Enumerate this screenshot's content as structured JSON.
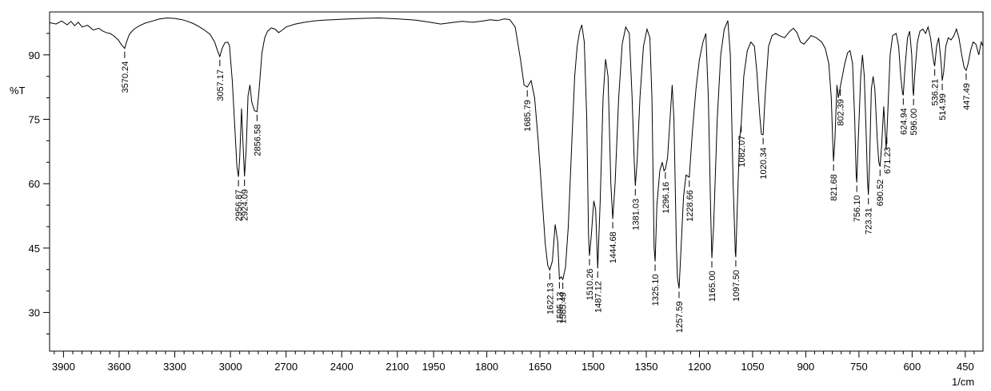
{
  "chart_data": {
    "type": "line",
    "ylabel": "%T",
    "xlabel": "1/cm",
    "x_axis": {
      "segments": [
        {
          "from": 3975,
          "to": 2000
        },
        {
          "from": 2000,
          "to": 400
        }
      ],
      "tick_labels": [
        3900,
        3600,
        3300,
        3000,
        2700,
        2400,
        2100,
        1950,
        1800,
        1650,
        1500,
        1350,
        1200,
        1050,
        900,
        750,
        600,
        450
      ]
    },
    "y_axis": {
      "range": [
        21,
        100
      ],
      "tick_labels": [
        30,
        45,
        60,
        75,
        90
      ]
    },
    "grid": false,
    "series": [
      {
        "color": "#000000",
        "points": [
          [
            3975,
            97.5
          ],
          [
            3940,
            97.2
          ],
          [
            3910,
            97.9
          ],
          [
            3880,
            97.0
          ],
          [
            3860,
            97.8
          ],
          [
            3840,
            96.8
          ],
          [
            3820,
            97.6
          ],
          [
            3800,
            96.5
          ],
          [
            3770,
            96.9
          ],
          [
            3740,
            95.8
          ],
          [
            3710,
            96.2
          ],
          [
            3690,
            95.6
          ],
          [
            3670,
            95.2
          ],
          [
            3650,
            95.0
          ],
          [
            3630,
            94.5
          ],
          [
            3605,
            93.5
          ],
          [
            3590,
            92.5
          ],
          [
            3570.24,
            91.5
          ],
          [
            3560,
            93.0
          ],
          [
            3545,
            94.8
          ],
          [
            3520,
            96.0
          ],
          [
            3490,
            96.8
          ],
          [
            3460,
            97.4
          ],
          [
            3420,
            97.9
          ],
          [
            3380,
            98.4
          ],
          [
            3340,
            98.6
          ],
          [
            3300,
            98.5
          ],
          [
            3260,
            98.2
          ],
          [
            3230,
            97.8
          ],
          [
            3200,
            97.3
          ],
          [
            3170,
            96.6
          ],
          [
            3140,
            95.8
          ],
          [
            3110,
            94.8
          ],
          [
            3085,
            93.0
          ],
          [
            3070,
            91.0
          ],
          [
            3057.17,
            89.6
          ],
          [
            3045,
            91.5
          ],
          [
            3030,
            92.8
          ],
          [
            3015,
            93.0
          ],
          [
            3005,
            92.2
          ],
          [
            2990,
            84.0
          ],
          [
            2975,
            72.0
          ],
          [
            2965,
            64.0
          ],
          [
            2956.87,
            61.6
          ],
          [
            2950,
            66.0
          ],
          [
            2940,
            77.5
          ],
          [
            2935,
            72.0
          ],
          [
            2924.09,
            61.7
          ],
          [
            2915,
            68.0
          ],
          [
            2905,
            80.5
          ],
          [
            2895,
            83.0
          ],
          [
            2885,
            79.0
          ],
          [
            2870,
            77.0
          ],
          [
            2856.58,
            76.8
          ],
          [
            2845,
            82.0
          ],
          [
            2830,
            90.5
          ],
          [
            2815,
            94.0
          ],
          [
            2800,
            95.5
          ],
          [
            2780,
            96.3
          ],
          [
            2760,
            96.0
          ],
          [
            2740,
            95.2
          ],
          [
            2720,
            95.8
          ],
          [
            2700,
            96.5
          ],
          [
            2650,
            97.2
          ],
          [
            2600,
            97.6
          ],
          [
            2550,
            97.9
          ],
          [
            2500,
            98.1
          ],
          [
            2450,
            98.2
          ],
          [
            2400,
            98.3
          ],
          [
            2300,
            98.5
          ],
          [
            2200,
            98.6
          ],
          [
            2100,
            98.4
          ],
          [
            2000,
            98.1
          ],
          [
            1960,
            97.6
          ],
          [
            1930,
            97.2
          ],
          [
            1900,
            97.5
          ],
          [
            1870,
            97.8
          ],
          [
            1840,
            97.6
          ],
          [
            1810,
            97.9
          ],
          [
            1790,
            98.2
          ],
          [
            1770,
            98.0
          ],
          [
            1750,
            98.4
          ],
          [
            1735,
            98.2
          ],
          [
            1720,
            96.5
          ],
          [
            1705,
            89.0
          ],
          [
            1695,
            83.0
          ],
          [
            1685.79,
            82.5
          ],
          [
            1675,
            84.0
          ],
          [
            1665,
            80.0
          ],
          [
            1655,
            70.0
          ],
          [
            1645,
            58.0
          ],
          [
            1635,
            46.0
          ],
          [
            1628,
            41.0
          ],
          [
            1622.13,
            39.9
          ],
          [
            1615,
            42.0
          ],
          [
            1607,
            50.5
          ],
          [
            1600,
            46.5
          ],
          [
            1595.13,
            37.8
          ],
          [
            1590,
            38.3
          ],
          [
            1585.49,
            37.7
          ],
          [
            1578,
            40.5
          ],
          [
            1570,
            50.0
          ],
          [
            1560,
            70.0
          ],
          [
            1552,
            85.0
          ],
          [
            1545,
            92.0
          ],
          [
            1538,
            95.5
          ],
          [
            1532,
            97.0
          ],
          [
            1525,
            93.0
          ],
          [
            1518,
            75.0
          ],
          [
            1513,
            48.0
          ],
          [
            1510.26,
            43.2
          ],
          [
            1505,
            48.0
          ],
          [
            1498,
            56.0
          ],
          [
            1493,
            54.0
          ],
          [
            1487.12,
            40.3
          ],
          [
            1480,
            56.0
          ],
          [
            1472,
            80.0
          ],
          [
            1465,
            89.0
          ],
          [
            1458,
            85.0
          ],
          [
            1450,
            60.0
          ],
          [
            1444.68,
            51.8
          ],
          [
            1438,
            60.0
          ],
          [
            1428,
            80.0
          ],
          [
            1418,
            92.5
          ],
          [
            1408,
            96.5
          ],
          [
            1398,
            95.0
          ],
          [
            1390,
            80.0
          ],
          [
            1384,
            65.0
          ],
          [
            1381.03,
            59.5
          ],
          [
            1376,
            65.0
          ],
          [
            1368,
            80.0
          ],
          [
            1358,
            92.0
          ],
          [
            1348,
            96.0
          ],
          [
            1340,
            94.0
          ],
          [
            1334,
            80.0
          ],
          [
            1328,
            45.0
          ],
          [
            1325.1,
            41.9
          ],
          [
            1320,
            55.0
          ],
          [
            1312,
            63.0
          ],
          [
            1305,
            65.0
          ],
          [
            1300,
            63.0
          ],
          [
            1296.16,
            63.4
          ],
          [
            1290,
            66.0
          ],
          [
            1283,
            75.0
          ],
          [
            1277,
            83.0
          ],
          [
            1272,
            75.0
          ],
          [
            1265,
            45.0
          ],
          [
            1262,
            38.0
          ],
          [
            1257.59,
            35.6
          ],
          [
            1252,
            45.0
          ],
          [
            1245,
            57.0
          ],
          [
            1238,
            62.0
          ],
          [
            1228.66,
            61.5
          ],
          [
            1220,
            72.0
          ],
          [
            1210,
            82.0
          ],
          [
            1200,
            89.0
          ],
          [
            1190,
            93.0
          ],
          [
            1182,
            95.0
          ],
          [
            1175,
            80.0
          ],
          [
            1168,
            52.0
          ],
          [
            1165.0,
            42.7
          ],
          [
            1160,
            50.0
          ],
          [
            1150,
            75.0
          ],
          [
            1140,
            90.0
          ],
          [
            1130,
            96.0
          ],
          [
            1120,
            98.0
          ],
          [
            1113,
            90.0
          ],
          [
            1105,
            60.0
          ],
          [
            1099,
            44.0
          ],
          [
            1097.5,
            42.9
          ],
          [
            1092,
            58.0
          ],
          [
            1087,
            70.0
          ],
          [
            1082.07,
            74.2
          ],
          [
            1075,
            85.0
          ],
          [
            1065,
            91.0
          ],
          [
            1055,
            93.0
          ],
          [
            1045,
            92.0
          ],
          [
            1038,
            86.0
          ],
          [
            1030,
            76.0
          ],
          [
            1025,
            71.5
          ],
          [
            1020.34,
            71.4
          ],
          [
            1015,
            80.0
          ],
          [
            1005,
            92.0
          ],
          [
            995,
            94.5
          ],
          [
            985,
            95.0
          ],
          [
            975,
            94.5
          ],
          [
            960,
            94.0
          ],
          [
            945,
            95.5
          ],
          [
            935,
            96.2
          ],
          [
            925,
            95.2
          ],
          [
            915,
            93.0
          ],
          [
            905,
            92.5
          ],
          [
            895,
            93.5
          ],
          [
            885,
            94.5
          ],
          [
            870,
            94.0
          ],
          [
            855,
            93.0
          ],
          [
            845,
            91.5
          ],
          [
            835,
            88.0
          ],
          [
            828,
            80.0
          ],
          [
            824,
            70.0
          ],
          [
            821.68,
            65.2
          ],
          [
            818,
            70.0
          ],
          [
            812,
            83.0
          ],
          [
            808,
            80.0
          ],
          [
            802.39,
            82.7
          ],
          [
            797,
            85.0
          ],
          [
            790,
            88.0
          ],
          [
            782,
            90.5
          ],
          [
            775,
            91.0
          ],
          [
            768,
            88.0
          ],
          [
            762,
            75.0
          ],
          [
            758,
            62.0
          ],
          [
            756.1,
            60.3
          ],
          [
            752,
            70.0
          ],
          [
            745,
            85.0
          ],
          [
            740,
            90.0
          ],
          [
            735,
            85.0
          ],
          [
            729,
            70.0
          ],
          [
            726,
            61.0
          ],
          [
            723.31,
            57.4
          ],
          [
            720,
            65.0
          ],
          [
            715,
            82.0
          ],
          [
            710,
            85.0
          ],
          [
            705,
            82.0
          ],
          [
            698,
            70.0
          ],
          [
            694,
            65.0
          ],
          [
            690.52,
            64.0
          ],
          [
            686,
            69.0
          ],
          [
            680,
            78.0
          ],
          [
            676,
            72.0
          ],
          [
            673,
            68.0
          ],
          [
            671.23,
            71.5
          ],
          [
            667,
            80.0
          ],
          [
            662,
            90.0
          ],
          [
            655,
            94.5
          ],
          [
            645,
            95.0
          ],
          [
            638,
            92.0
          ],
          [
            632,
            85.0
          ],
          [
            627,
            81.0
          ],
          [
            624.94,
            80.6
          ],
          [
            620,
            87.0
          ],
          [
            613,
            94.0
          ],
          [
            607,
            95.5
          ],
          [
            601,
            90.0
          ],
          [
            598,
            82.0
          ],
          [
            596.0,
            80.5
          ],
          [
            592,
            86.0
          ],
          [
            585,
            93.0
          ],
          [
            578,
            95.5
          ],
          [
            570,
            96.0
          ],
          [
            562,
            95.0
          ],
          [
            555,
            96.5
          ],
          [
            548,
            94.0
          ],
          [
            542,
            90.0
          ],
          [
            538,
            88.0
          ],
          [
            536.21,
            87.4
          ],
          [
            531,
            92.0
          ],
          [
            525,
            94.0
          ],
          [
            518,
            88.0
          ],
          [
            514.99,
            84.0
          ],
          [
            511,
            86.0
          ],
          [
            505,
            92.0
          ],
          [
            498,
            94.0
          ],
          [
            490,
            93.5
          ],
          [
            482,
            94.5
          ],
          [
            475,
            96.0
          ],
          [
            468,
            94.0
          ],
          [
            460,
            90.0
          ],
          [
            453,
            87.0
          ],
          [
            447.49,
            86.4
          ],
          [
            442,
            88.0
          ],
          [
            435,
            91.0
          ],
          [
            428,
            93.0
          ],
          [
            420,
            92.5
          ],
          [
            412,
            90.0
          ],
          [
            405,
            93.0
          ],
          [
            400,
            92.0
          ]
        ]
      }
    ],
    "peaks": [
      {
        "x": 3570.24,
        "label": "3570.24"
      },
      {
        "x": 3057.17,
        "label": "3057.17"
      },
      {
        "x": 2956.87,
        "label": "2956.87"
      },
      {
        "x": 2924.09,
        "label": "2924.09"
      },
      {
        "x": 2856.58,
        "label": "2856.58"
      },
      {
        "x": 1685.79,
        "label": "1685.79"
      },
      {
        "x": 1622.13,
        "label": "1622.13"
      },
      {
        "x": 1595.13,
        "label": "1595.13"
      },
      {
        "x": 1585.49,
        "label": "1585.49"
      },
      {
        "x": 1510.26,
        "label": "1510.26"
      },
      {
        "x": 1487.12,
        "label": "1487.12"
      },
      {
        "x": 1444.68,
        "label": "1444.68"
      },
      {
        "x": 1381.03,
        "label": "1381.03"
      },
      {
        "x": 1325.1,
        "label": "1325.10"
      },
      {
        "x": 1296.16,
        "label": "1296.16"
      },
      {
        "x": 1257.59,
        "label": "1257.59"
      },
      {
        "x": 1228.66,
        "label": "1228.66"
      },
      {
        "x": 1165.0,
        "label": "1165.00"
      },
      {
        "x": 1097.5,
        "label": "1097.50"
      },
      {
        "x": 1082.07,
        "label": "1082.07"
      },
      {
        "x": 1020.34,
        "label": "1020.34"
      },
      {
        "x": 821.68,
        "label": "821.68"
      },
      {
        "x": 802.39,
        "label": "802.39"
      },
      {
        "x": 756.1,
        "label": "756.10"
      },
      {
        "x": 723.31,
        "label": "723.31"
      },
      {
        "x": 690.52,
        "label": "690.52"
      },
      {
        "x": 671.23,
        "label": "671.23"
      },
      {
        "x": 624.94,
        "label": "624.94"
      },
      {
        "x": 596.0,
        "label": "596.00"
      },
      {
        "x": 536.21,
        "label": "536.21"
      },
      {
        "x": 514.99,
        "label": "514.99"
      },
      {
        "x": 447.49,
        "label": "447.49"
      }
    ]
  }
}
